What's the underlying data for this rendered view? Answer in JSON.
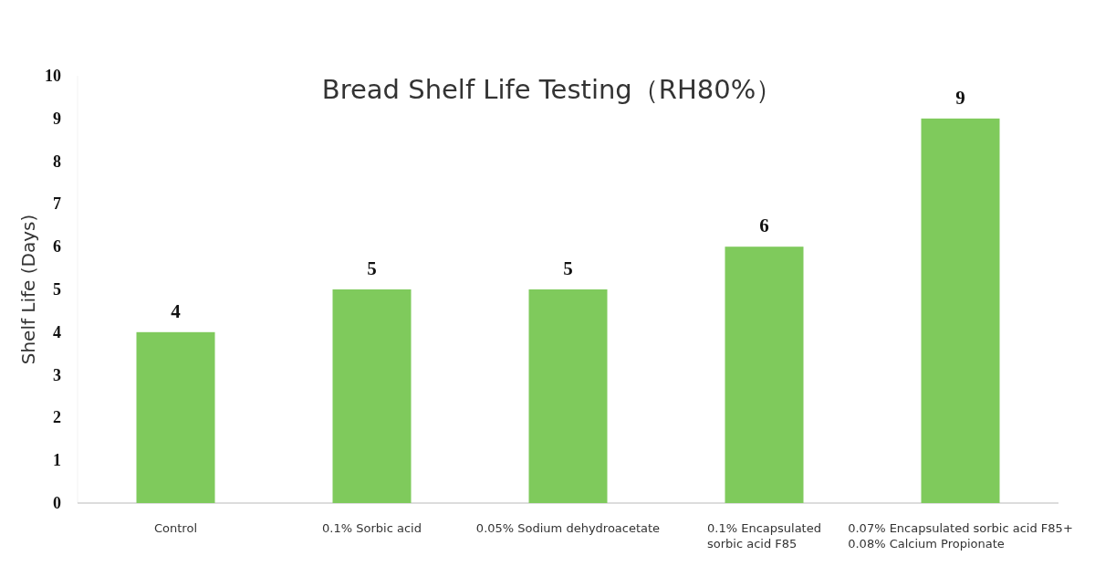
{
  "chart_data": {
    "type": "bar",
    "title": "Bread Shelf Life Testing（RH80%）",
    "ylabel": "Shelf Life (Days)",
    "categories": [
      "Control",
      "0.1% Sorbic acid",
      "0.05% Sodium dehydroacetate",
      "0.1% Encapsulated\nsorbic acid F85",
      "0.07% Encapsulated sorbic acid F85+\n0.08% Calcium Propionate"
    ],
    "values": [
      4,
      5,
      5,
      6,
      9
    ],
    "color": "#7fca5c",
    "ylim": [
      0,
      10
    ],
    "yticks": [
      0,
      1,
      2,
      3,
      4,
      5,
      6,
      7,
      8,
      9,
      10
    ],
    "data_labels": true
  }
}
